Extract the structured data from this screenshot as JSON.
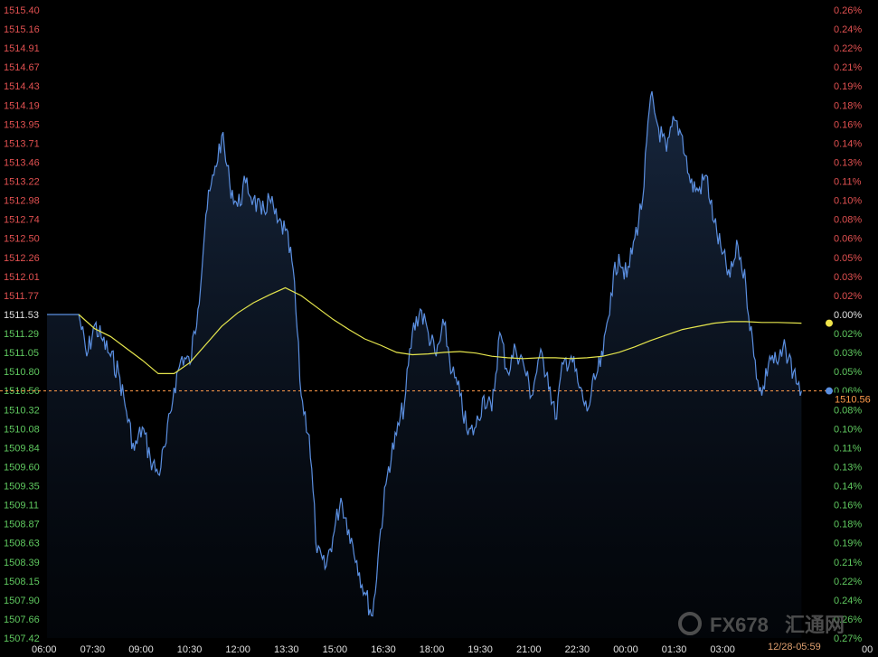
{
  "chart_data": {
    "type": "line",
    "title": "",
    "y_ticks": [
      "1515.40",
      "1515.16",
      "1514.91",
      "1514.67",
      "1514.43",
      "1514.19",
      "1513.95",
      "1513.71",
      "1513.46",
      "1513.22",
      "1512.98",
      "1512.74",
      "1512.50",
      "1512.26",
      "1512.01",
      "1511.77",
      "1511.53",
      "1511.29",
      "1511.05",
      "1510.80",
      "1510.56",
      "1510.32",
      "1510.08",
      "1509.84",
      "1509.60",
      "1509.35",
      "1509.11",
      "1508.87",
      "1508.63",
      "1508.39",
      "1508.15",
      "1507.90",
      "1507.66",
      "1507.42"
    ],
    "pct_ticks": [
      "0.26%",
      "0.24%",
      "0.22%",
      "0.21%",
      "0.19%",
      "0.18%",
      "0.16%",
      "0.14%",
      "0.13%",
      "0.11%",
      "0.10%",
      "0.08%",
      "0.06%",
      "0.05%",
      "0.03%",
      "0.02%",
      "0.00%",
      "0.02%",
      "0.03%",
      "0.05%",
      "0.06%",
      "0.08%",
      "0.10%",
      "0.11%",
      "0.13%",
      "0.14%",
      "0.16%",
      "0.18%",
      "0.19%",
      "0.21%",
      "0.22%",
      "0.24%",
      "0.26%",
      "0.27%"
    ],
    "x_ticks": [
      "06:00",
      "07:30",
      "09:00",
      "10:30",
      "12:00",
      "13:30",
      "15:00",
      "16:30",
      "18:00",
      "19:30",
      "21:00",
      "22:30",
      "00:00",
      "01:30",
      "03:00"
    ],
    "x_tick_trailing": "00",
    "baseline": 1511.53,
    "ylim": [
      1507.42,
      1515.4
    ],
    "price_series": [
      [
        "06:00",
        1511.53
      ],
      [
        "07:00",
        1511.53
      ],
      [
        "07:15",
        1511.0
      ],
      [
        "07:30",
        1511.4
      ],
      [
        "07:45",
        1511.2
      ],
      [
        "08:00",
        1511.0
      ],
      [
        "08:15",
        1510.8
      ],
      [
        "08:30",
        1510.3
      ],
      [
        "08:45",
        1509.8
      ],
      [
        "09:00",
        1510.1
      ],
      [
        "09:15",
        1509.7
      ],
      [
        "09:30",
        1509.5
      ],
      [
        "09:45",
        1509.9
      ],
      [
        "10:00",
        1510.6
      ],
      [
        "10:15",
        1511.0
      ],
      [
        "10:30",
        1510.9
      ],
      [
        "10:45",
        1511.6
      ],
      [
        "11:00",
        1512.8
      ],
      [
        "11:15",
        1513.3
      ],
      [
        "11:30",
        1513.8
      ],
      [
        "11:45",
        1513.2
      ],
      [
        "12:00",
        1512.9
      ],
      [
        "12:15",
        1513.2
      ],
      [
        "12:30",
        1513.0
      ],
      [
        "12:45",
        1512.8
      ],
      [
        "13:00",
        1513.0
      ],
      [
        "13:15",
        1512.7
      ],
      [
        "13:30",
        1512.6
      ],
      [
        "13:45",
        1512.1
      ],
      [
        "14:00",
        1510.5
      ],
      [
        "14:15",
        1510.0
      ],
      [
        "14:30",
        1508.5
      ],
      [
        "14:45",
        1508.3
      ],
      [
        "15:00",
        1508.7
      ],
      [
        "15:15",
        1509.2
      ],
      [
        "15:30",
        1508.8
      ],
      [
        "15:45",
        1508.4
      ],
      [
        "16:00",
        1508.0
      ],
      [
        "16:15",
        1507.7
      ],
      [
        "16:30",
        1508.8
      ],
      [
        "16:45",
        1509.6
      ],
      [
        "17:00",
        1510.0
      ],
      [
        "17:15",
        1510.4
      ],
      [
        "17:30",
        1511.3
      ],
      [
        "17:45",
        1511.6
      ],
      [
        "18:00",
        1511.3
      ],
      [
        "18:15",
        1511.0
      ],
      [
        "18:30",
        1511.4
      ],
      [
        "18:45",
        1510.8
      ],
      [
        "19:00",
        1510.5
      ],
      [
        "19:15",
        1510.0
      ],
      [
        "19:30",
        1510.1
      ],
      [
        "19:45",
        1510.5
      ],
      [
        "20:00",
        1510.3
      ],
      [
        "20:15",
        1511.3
      ],
      [
        "20:30",
        1510.8
      ],
      [
        "20:45",
        1511.1
      ],
      [
        "21:00",
        1510.9
      ],
      [
        "21:15",
        1510.5
      ],
      [
        "21:30",
        1511.0
      ],
      [
        "21:45",
        1510.8
      ],
      [
        "22:00",
        1510.2
      ],
      [
        "22:15",
        1510.9
      ],
      [
        "22:30",
        1511.0
      ],
      [
        "22:45",
        1510.6
      ],
      [
        "23:00",
        1510.3
      ],
      [
        "23:15",
        1510.7
      ],
      [
        "23:30",
        1511.0
      ],
      [
        "23:45",
        1511.8
      ],
      [
        "00:00",
        1512.3
      ],
      [
        "00:15",
        1512.0
      ],
      [
        "00:30",
        1512.5
      ],
      [
        "00:45",
        1513.0
      ],
      [
        "01:00",
        1514.3
      ],
      [
        "01:15",
        1513.9
      ],
      [
        "01:30",
        1513.6
      ],
      [
        "01:45",
        1514.0
      ],
      [
        "02:00",
        1513.8
      ],
      [
        "02:15",
        1513.2
      ],
      [
        "02:30",
        1513.1
      ],
      [
        "02:45",
        1513.3
      ],
      [
        "03:00",
        1512.7
      ],
      [
        "03:15",
        1512.3
      ],
      [
        "03:30",
        1512.0
      ],
      [
        "03:45",
        1512.4
      ],
      [
        "04:00",
        1511.9
      ],
      [
        "04:15",
        1511.0
      ],
      [
        "04:30",
        1510.5
      ],
      [
        "04:45",
        1511.0
      ],
      [
        "05:00",
        1510.9
      ],
      [
        "05:15",
        1511.1
      ],
      [
        "05:30",
        1510.8
      ],
      [
        "05:45",
        1510.56
      ]
    ],
    "avg_series": [
      [
        "07:00",
        1511.53
      ],
      [
        "07:30",
        1511.35
      ],
      [
        "08:00",
        1511.25
      ],
      [
        "08:30",
        1511.1
      ],
      [
        "09:00",
        1510.95
      ],
      [
        "09:30",
        1510.78
      ],
      [
        "10:00",
        1510.78
      ],
      [
        "10:30",
        1510.92
      ],
      [
        "11:00",
        1511.15
      ],
      [
        "11:30",
        1511.38
      ],
      [
        "12:00",
        1511.55
      ],
      [
        "12:30",
        1511.68
      ],
      [
        "13:00",
        1511.78
      ],
      [
        "13:30",
        1511.87
      ],
      [
        "14:00",
        1511.77
      ],
      [
        "14:30",
        1511.62
      ],
      [
        "15:00",
        1511.47
      ],
      [
        "15:30",
        1511.34
      ],
      [
        "16:00",
        1511.22
      ],
      [
        "16:30",
        1511.14
      ],
      [
        "17:00",
        1511.05
      ],
      [
        "17:30",
        1511.02
      ],
      [
        "18:00",
        1511.03
      ],
      [
        "18:30",
        1511.05
      ],
      [
        "19:00",
        1511.06
      ],
      [
        "19:30",
        1511.04
      ],
      [
        "20:00",
        1511.0
      ],
      [
        "20:30",
        1510.98
      ],
      [
        "21:00",
        1510.97
      ],
      [
        "21:30",
        1510.98
      ],
      [
        "22:00",
        1510.98
      ],
      [
        "22:30",
        1510.97
      ],
      [
        "23:00",
        1510.98
      ],
      [
        "23:30",
        1511.0
      ],
      [
        "00:00",
        1511.05
      ],
      [
        "00:30",
        1511.12
      ],
      [
        "01:00",
        1511.2
      ],
      [
        "01:30",
        1511.27
      ],
      [
        "02:00",
        1511.34
      ],
      [
        "02:30",
        1511.38
      ],
      [
        "03:00",
        1511.42
      ],
      [
        "03:30",
        1511.44
      ],
      [
        "04:00",
        1511.44
      ],
      [
        "04:30",
        1511.43
      ],
      [
        "05:00",
        1511.43
      ],
      [
        "05:45",
        1511.42
      ]
    ],
    "current_value": "1510.56",
    "timestamp": "12/28-05:59",
    "grid": false,
    "colors": {
      "price_line": "#5b8fe0",
      "avg_line": "#e6e64d",
      "baseline": "#ff9a4a",
      "up_label": "#e05050",
      "down_label": "#5fc85f"
    }
  },
  "watermark": {
    "text": "FX678",
    "cn": "汇通网",
    "icon": "fx678-logo-icon"
  }
}
